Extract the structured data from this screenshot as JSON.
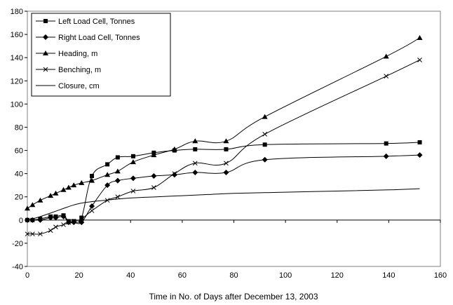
{
  "chart_data": {
    "type": "line",
    "title": "",
    "xlabel": "Time in No. of Days after December 13, 2003",
    "ylabel": "",
    "xlim": [
      0,
      160
    ],
    "ylim": [
      -40,
      180
    ],
    "x_ticks": [
      0,
      20,
      40,
      60,
      80,
      100,
      120,
      140,
      160
    ],
    "y_ticks": [
      -40,
      -20,
      0,
      20,
      40,
      60,
      80,
      100,
      120,
      140,
      160,
      180
    ],
    "grid": false,
    "legend_position": "top-left",
    "series": [
      {
        "name": "Left Load Cell, Tonnes",
        "marker": "square",
        "x": [
          0,
          2,
          5,
          9,
          11,
          14,
          16,
          18,
          21,
          25,
          31,
          35,
          41,
          49,
          57,
          65,
          77,
          92,
          139,
          152
        ],
        "y": [
          0,
          0,
          1,
          3,
          3,
          4,
          -1,
          -1,
          2,
          38,
          48,
          54,
          55,
          58,
          60,
          61,
          61,
          65,
          66,
          67
        ]
      },
      {
        "name": "Right Load Cell, Tonnes",
        "marker": "diamond",
        "x": [
          0,
          2,
          5,
          9,
          11,
          14,
          16,
          18,
          21,
          25,
          31,
          35,
          41,
          49,
          57,
          65,
          77,
          92,
          139,
          152
        ],
        "y": [
          0,
          0,
          0,
          2,
          2,
          3,
          -2,
          -2,
          -2,
          12,
          30,
          34,
          36,
          38,
          39,
          41,
          41,
          52,
          55,
          56
        ]
      },
      {
        "name": "Heading, m",
        "marker": "triangle",
        "x": [
          0,
          2,
          5,
          9,
          11,
          14,
          16,
          18,
          21,
          25,
          31,
          35,
          41,
          49,
          57,
          65,
          77,
          92,
          139,
          152
        ],
        "y": [
          10,
          13,
          17,
          21,
          23,
          26,
          28,
          30,
          32,
          34,
          39,
          42,
          50,
          56,
          61,
          68,
          68,
          89,
          141,
          157
        ]
      },
      {
        "name": "Benching, m",
        "marker": "x",
        "x": [
          0,
          2,
          5,
          9,
          11,
          14,
          16,
          18,
          21,
          25,
          31,
          35,
          41,
          49,
          57,
          65,
          77,
          92,
          139,
          152
        ],
        "y": [
          -12,
          -12,
          -12,
          -9,
          -6,
          -4,
          -2,
          -1,
          1,
          8,
          17,
          20,
          25,
          28,
          40,
          49,
          49,
          74,
          124,
          138
        ]
      },
      {
        "name": "Closure, cm",
        "marker": "none",
        "x": [
          0,
          2,
          5,
          9,
          14,
          18,
          22,
          30,
          40,
          50,
          60,
          70,
          80,
          100,
          120,
          140,
          152
        ],
        "y": [
          0,
          1,
          3,
          6,
          10,
          13,
          15,
          17,
          19,
          20,
          21,
          22,
          23,
          24,
          25,
          26,
          27
        ]
      }
    ]
  }
}
